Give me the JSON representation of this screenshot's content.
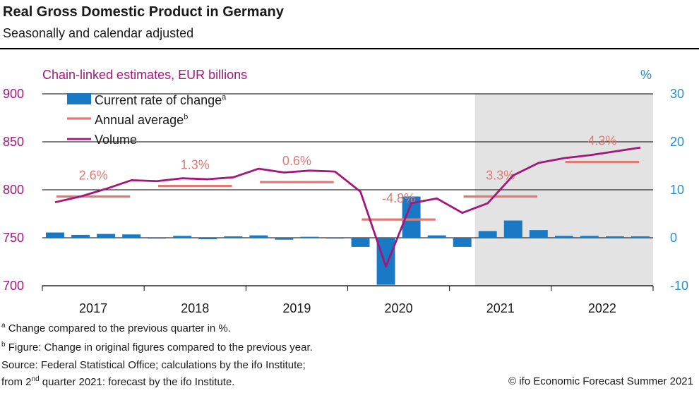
{
  "header": {
    "title": "Real Gross Domestic Product in Germany",
    "subtitle": "Seasonally and calendar adjusted"
  },
  "colors": {
    "bars": "#1a79c4",
    "annual_average": "#e07a75",
    "volume": "#a3177a",
    "left_axis": "#a3177a",
    "right_axis": "#2a8ccd",
    "forecast_shade": "#e3e3e3"
  },
  "chart_data": {
    "type": "bar",
    "left_axis_label": "Chain-linked estimates, EUR billions",
    "right_axis_label": "%",
    "left_ylim": [
      700,
      900
    ],
    "left_ticks": [
      900,
      850,
      800,
      750,
      700
    ],
    "right_ylim": [
      -10,
      30
    ],
    "right_ticks": [
      30,
      20,
      10,
      0,
      -10
    ],
    "years": [
      "2017",
      "2018",
      "2019",
      "2020",
      "2021",
      "2022"
    ],
    "forecast_start_quarter_index": 17,
    "legend": {
      "bars": "Current rate of change",
      "bars_note": "a",
      "annual": "Annual average",
      "annual_note": "b",
      "volume": "Volume"
    },
    "series": [
      {
        "name": "Current rate of change",
        "axis": "right",
        "values": [
          1.1,
          0.6,
          0.8,
          0.7,
          -0.1,
          0.4,
          -0.3,
          0.3,
          0.5,
          -0.4,
          0.2,
          0.0,
          -1.9,
          -9.8,
          8.6,
          0.5,
          -1.9,
          1.4,
          3.6,
          1.6,
          0.4,
          0.4,
          0.3,
          0.3
        ]
      },
      {
        "name": "Volume",
        "axis": "left",
        "values": [
          787,
          793,
          801,
          810,
          809,
          812,
          811,
          813,
          822,
          818,
          820,
          819,
          798,
          720,
          786,
          791,
          776,
          786,
          815,
          828,
          833,
          836,
          840,
          844
        ]
      }
    ],
    "annual_average": [
      {
        "year": "2017",
        "label": "2.6%",
        "level": 793
      },
      {
        "year": "2018",
        "label": "1.3%",
        "level": 804
      },
      {
        "year": "2019",
        "label": "0.6%",
        "level": 808
      },
      {
        "year": "2020",
        "label": "-4.8%",
        "level": 769
      },
      {
        "year": "2021",
        "label": "3.3%",
        "level": 793
      },
      {
        "year": "2022",
        "label": "4.3%",
        "level": 829
      }
    ]
  },
  "footnotes": {
    "a": "a",
    "a_text": "Change compared to the previous quarter in %.",
    "b": "b",
    "b_text": "Figure: Change in original figures compared to the previous year.",
    "source": "Source: Federal Statistical Office; calculations by the ifo Institute;",
    "forecast_pre": "from 2",
    "forecast_sup": "nd",
    "forecast_post": " quarter 2021: forecast by the ifo Institute.",
    "copyright": "© ifo Economic Forecast Summer 2021"
  }
}
